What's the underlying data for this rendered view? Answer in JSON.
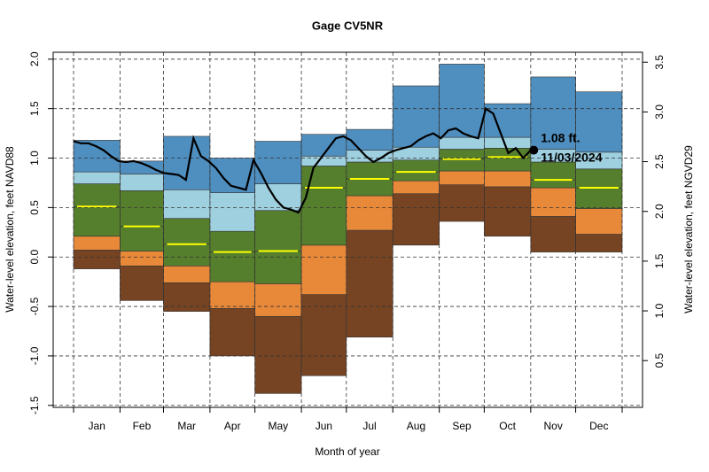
{
  "chart_data": {
    "type": "percentile-bands",
    "title": "Gage CV5NR",
    "x_label": "Month of year",
    "y_label": "Water-level elevation, feet NAVD88",
    "y2_label": "Water-level elevation, feet NGVD29",
    "categories": [
      "Jan",
      "Feb",
      "Mar",
      "Apr",
      "May",
      "Jun",
      "Jul",
      "Aug",
      "Sep",
      "Oct",
      "Nov",
      "Dec"
    ],
    "band_colors": [
      "#774423",
      "#e8893a",
      "#557f2d",
      "#557f2d",
      "#9fd0e0",
      "#4f8fc0"
    ],
    "median_color": "#ffff00",
    "series": [
      {
        "values": [
          -0.12,
          -0.44,
          -0.55,
          -1.0,
          -1.38,
          -1.2,
          -0.81,
          0.12,
          0.36,
          0.21,
          0.05,
          0.05
        ]
      },
      {
        "values": [
          0.07,
          -0.09,
          -0.26,
          -0.52,
          -0.6,
          -0.38,
          0.27,
          0.64,
          0.73,
          0.71,
          0.41,
          0.23
        ]
      },
      {
        "values": [
          0.21,
          0.06,
          -0.09,
          -0.25,
          -0.27,
          0.12,
          0.62,
          0.77,
          0.87,
          0.87,
          0.7,
          0.49
        ]
      },
      {
        "values": [
          0.51,
          0.31,
          0.13,
          0.05,
          0.06,
          0.7,
          0.79,
          0.86,
          0.99,
          1.01,
          0.78,
          0.7
        ]
      },
      {
        "values": [
          0.74,
          0.67,
          0.39,
          0.26,
          0.47,
          0.92,
          0.96,
          0.98,
          1.09,
          1.1,
          0.96,
          0.89
        ]
      },
      {
        "values": [
          0.86,
          0.84,
          0.68,
          0.65,
          0.74,
          1.02,
          1.08,
          1.11,
          1.21,
          1.21,
          1.09,
          1.06
        ]
      },
      {
        "values": [
          1.18,
          0.97,
          1.22,
          1.0,
          1.17,
          1.24,
          1.29,
          1.73,
          1.95,
          1.55,
          1.82,
          1.67
        ]
      }
    ],
    "line": {
      "color": "#000000",
      "values": [
        1.17,
        1.15,
        1.15,
        1.12,
        1.08,
        1.02,
        0.97,
        0.96,
        0.97,
        0.95,
        0.92,
        0.88,
        0.85,
        0.84,
        0.83,
        0.78,
        1.2,
        1.02,
        0.97,
        0.9,
        0.8,
        0.72,
        0.7,
        0.68,
        0.98,
        0.85,
        0.7,
        0.58,
        0.5,
        0.48,
        0.45,
        0.6,
        0.9,
        1.0,
        1.1,
        1.2,
        1.22,
        1.18,
        1.1,
        1.02,
        0.96,
        1.0,
        1.05,
        1.08,
        1.1,
        1.12,
        1.18,
        1.22,
        1.25,
        1.2,
        1.28,
        1.3,
        1.25,
        1.22,
        1.2,
        1.5,
        1.45,
        1.25,
        1.05,
        1.1,
        1.0,
        1.08
      ]
    },
    "marker": {
      "value": 1.08,
      "value_label": "1.08 ft.",
      "date": "11/03/2024"
    },
    "ylim": [
      -1.52,
      2.07
    ],
    "yticks": [
      {
        "value": -1.5,
        "label": "-1.5"
      },
      {
        "value": -1,
        "label": "-1.0"
      },
      {
        "value": -0.5,
        "label": "-0.5"
      },
      {
        "value": 0,
        "label": "0.0"
      },
      {
        "value": 0.5,
        "label": "0.5"
      },
      {
        "value": 1,
        "label": "1.0"
      },
      {
        "value": 1.5,
        "label": "1.5"
      },
      {
        "value": 2,
        "label": "2.0"
      }
    ],
    "y2lim": [
      0.03,
      3.6
    ],
    "y2ticks": [
      0.5,
      {
        "value": 1,
        "label": "1.0"
      },
      1.5,
      {
        "value": 2,
        "label": "2.0"
      },
      2.5,
      {
        "value": 3,
        "label": "3.0"
      },
      3.5
    ],
    "grid": true
  }
}
